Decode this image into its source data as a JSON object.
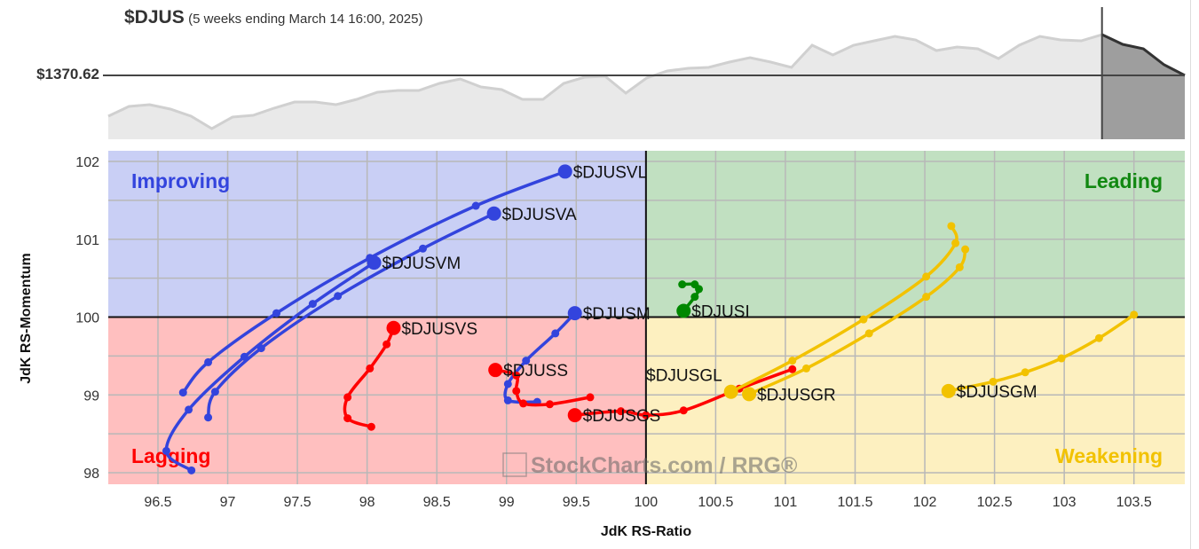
{
  "header": {
    "symbol": "$DJUS",
    "subtitle": "(5 weeks ending March 14 16:00, 2025)",
    "price_label": "$1370.62"
  },
  "watermark": "StockCharts.com / RRG®",
  "colors": {
    "improving_bg": "#c9cff5",
    "leading_bg": "#c1e0c1",
    "lagging_bg": "#ffbfbf",
    "weakening_bg": "#fdf0c0",
    "blue": "#3344dd",
    "red": "#ff0000",
    "green": "#008800",
    "yellow": "#f2c200"
  },
  "chart_data": [
    {
      "type": "area",
      "title": "$DJUS",
      "reference_price": 1370.62,
      "note": "approximate price trace (scale estimated)",
      "values": [
        1278.6,
        1300.6,
        1304.6,
        1294.6,
        1278.6,
        1250.6,
        1276.6,
        1280.6,
        1296.6,
        1310.6,
        1310.6,
        1304.6,
        1316.6,
        1332.6,
        1336.6,
        1336.6,
        1352.6,
        1362.6,
        1344.6,
        1338.6,
        1316.6,
        1316.6,
        1352.6,
        1366.6,
        1368.6,
        1330.6,
        1364.6,
        1380.6,
        1386.6,
        1388.6,
        1400.6,
        1410.6,
        1400.6,
        1388.6,
        1438.6,
        1416.6,
        1438.6,
        1448.6,
        1458.6,
        1450.6,
        1426.6,
        1434.6,
        1430.6,
        1408.6,
        1438.6,
        1458.6,
        1450.6,
        1448.6,
        1462.6,
        1440.6,
        1430.6,
        1394.6,
        1370.62
      ],
      "highlight_last_n": 5,
      "ylim": [
        1226.62,
        1530.62
      ]
    },
    {
      "type": "scatter",
      "subtype": "relative-rotation-graph",
      "xlabel": "JdK RS-Ratio",
      "ylabel": "JdK RS-Momentum",
      "xlim": [
        96.14,
        103.86
      ],
      "ylim": [
        97.85,
        102.14
      ],
      "x_ticks": [
        "96.5",
        "97",
        "97.5",
        "98",
        "98.5",
        "99",
        "99.5",
        "100",
        "100.5",
        "101",
        "101.5",
        "102",
        "102.5",
        "103",
        "103.5"
      ],
      "y_ticks": [
        "98",
        "99",
        "100",
        "101",
        "102"
      ],
      "grid": true,
      "quadrants": {
        "improving": "Improving",
        "leading": "Leading",
        "lagging": "Lagging",
        "weakening": "Weakening"
      },
      "series": [
        {
          "name": "$DJUSVL",
          "color": "blue",
          "points": [
            [
              96.68,
              99.03
            ],
            [
              96.86,
              99.42
            ],
            [
              97.35,
              100.05
            ],
            [
              98.02,
              100.76
            ],
            [
              98.78,
              101.43
            ],
            [
              99.42,
              101.87
            ]
          ]
        },
        {
          "name": "$DJUSVA",
          "color": "blue",
          "points": [
            [
              96.86,
              98.71
            ],
            [
              96.91,
              99.04
            ],
            [
              97.24,
              99.6
            ],
            [
              97.79,
              100.27
            ],
            [
              98.4,
              100.88
            ],
            [
              98.91,
              101.33
            ]
          ]
        },
        {
          "name": "$DJUSVM",
          "color": "blue",
          "points": [
            [
              96.74,
              98.03
            ],
            [
              96.56,
              98.28
            ],
            [
              96.72,
              98.81
            ],
            [
              97.12,
              99.49
            ],
            [
              97.61,
              100.17
            ],
            [
              98.05,
              100.7
            ]
          ]
        },
        {
          "name": "$DJUSM",
          "color": "blue",
          "points": [
            [
              99.22,
              98.91
            ],
            [
              99.01,
              98.93
            ],
            [
              99.01,
              99.14
            ],
            [
              99.14,
              99.44
            ],
            [
              99.35,
              99.79
            ],
            [
              99.49,
              100.05
            ]
          ]
        },
        {
          "name": "$DJUSVS",
          "color": "red",
          "points": [
            [
              98.03,
              98.59
            ],
            [
              97.86,
              98.7
            ],
            [
              97.86,
              98.97
            ],
            [
              98.02,
              99.34
            ],
            [
              98.14,
              99.65
            ],
            [
              98.19,
              99.86
            ]
          ]
        },
        {
          "name": "$DJUSS",
          "color": "red",
          "points": [
            [
              99.6,
              98.97
            ],
            [
              99.31,
              98.88
            ],
            [
              99.12,
              98.89
            ],
            [
              99.07,
              99.05
            ],
            [
              99.07,
              99.25
            ],
            [
              98.92,
              99.32
            ]
          ]
        },
        {
          "name": "$DJUSGS",
          "color": "red",
          "points": [
            [
              101.05,
              99.33
            ],
            [
              100.67,
              99.08
            ],
            [
              100.27,
              98.8
            ],
            [
              100.0,
              98.74
            ],
            [
              99.82,
              98.79
            ],
            [
              99.49,
              98.74
            ]
          ]
        },
        {
          "name": "$DJUSI",
          "color": "green",
          "points": [
            [
              100.26,
              100.42
            ],
            [
              100.35,
              100.42
            ],
            [
              100.38,
              100.36
            ],
            [
              100.35,
              100.26
            ],
            [
              100.27,
              100.08
            ]
          ]
        },
        {
          "name": "$DJUSGL",
          "color": "yellow",
          "points": [
            [
              102.19,
              101.17
            ],
            [
              102.22,
              100.95
            ],
            [
              102.01,
              100.52
            ],
            [
              101.56,
              99.97
            ],
            [
              101.05,
              99.44
            ],
            [
              100.61,
              99.04
            ]
          ]
        },
        {
          "name": "$DJUSGR",
          "color": "yellow",
          "points": [
            [
              102.29,
              100.87
            ],
            [
              102.25,
              100.64
            ],
            [
              102.01,
              100.26
            ],
            [
              101.6,
              99.79
            ],
            [
              101.15,
              99.34
            ],
            [
              100.74,
              99.01
            ]
          ]
        },
        {
          "name": "$DJUSGM",
          "color": "yellow",
          "points": [
            [
              103.5,
              100.03
            ],
            [
              103.25,
              99.73
            ],
            [
              102.98,
              99.47
            ],
            [
              102.72,
              99.29
            ],
            [
              102.49,
              99.17
            ],
            [
              102.17,
              99.05
            ]
          ]
        }
      ]
    }
  ]
}
